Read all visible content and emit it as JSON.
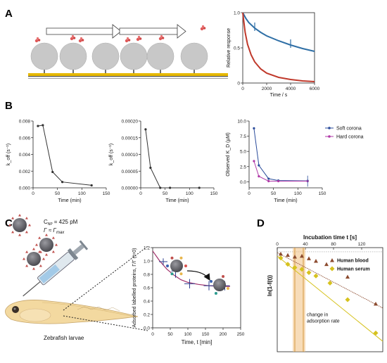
{
  "panels": {
    "A": {
      "label": "A"
    },
    "B": {
      "label": "B"
    },
    "C": {
      "label": "C",
      "conc_text": "C",
      "conc_sub": "NP",
      "conc_value": "= 425 pM",
      "gamma_text": "Γ ≈ Γ",
      "gamma_sub": "max",
      "larvae_label": "Zebrafish larvae"
    },
    "D": {
      "label": "D"
    }
  },
  "chart_data": [
    {
      "id": "A-right",
      "type": "line",
      "xlabel": "Time / s",
      "ylabel": "Relative response",
      "xlim": [
        0,
        6000
      ],
      "ylim": [
        0,
        1.0
      ],
      "xticks": [
        0,
        2000,
        4000,
        6000
      ],
      "yticks": [
        0,
        0.5,
        1.0
      ],
      "ytick_labels": [
        "0",
        "0.5",
        "1.0"
      ],
      "series": [
        {
          "color": "#2f6fa6",
          "x": [
            0,
            250,
            500,
            1000,
            1500,
            2000,
            3000,
            4000,
            5000,
            6000
          ],
          "y": [
            1.0,
            0.92,
            0.86,
            0.78,
            0.72,
            0.67,
            0.6,
            0.54,
            0.49,
            0.45
          ]
        },
        {
          "color": "#c0392b",
          "x": [
            0,
            200,
            400,
            700,
            1000,
            1500,
            2000,
            3000,
            4000,
            5000,
            6000
          ],
          "y": [
            1.0,
            0.72,
            0.55,
            0.4,
            0.3,
            0.2,
            0.14,
            0.08,
            0.05,
            0.03,
            0.02
          ]
        }
      ],
      "error_bars": [
        {
          "x": 1000,
          "y": 0.8,
          "err": 0.06
        },
        {
          "x": 4000,
          "y": 0.56,
          "err": 0.06
        }
      ]
    },
    {
      "id": "B-left",
      "type": "line",
      "xlabel": "Time (min)",
      "ylabel": "k_off (s⁻¹)",
      "xlim": [
        0,
        150
      ],
      "ylim": [
        0,
        0.008
      ],
      "xticks": [
        0,
        50,
        100,
        150
      ],
      "yticks": [
        0,
        0.002,
        0.004,
        0.006,
        0.008
      ],
      "ytick_labels": [
        "0.000",
        "0.002",
        "0.004",
        "0.006",
        "0.008"
      ],
      "series": [
        {
          "color": "#333333",
          "x": [
            10,
            20,
            40,
            60,
            120
          ],
          "y": [
            0.0074,
            0.0075,
            0.0019,
            0.0007,
            0.0003
          ]
        }
      ]
    },
    {
      "id": "B-middle",
      "type": "line",
      "xlabel": "Time (min)",
      "ylabel": "k_off (s⁻¹)",
      "xlim": [
        0,
        150
      ],
      "ylim": [
        0,
        0.0002
      ],
      "xticks": [
        0,
        50,
        100,
        150
      ],
      "yticks": [
        0,
        5e-05,
        0.0001,
        0.00015,
        0.0002
      ],
      "ytick_labels": [
        "0.00000",
        "0.00005",
        "0.00010",
        "0.00015",
        "0.00020"
      ],
      "series": [
        {
          "color": "#333333",
          "x": [
            10,
            20,
            40,
            60,
            120
          ],
          "y": [
            0.000175,
            6e-05,
            0.0,
            0.0,
            0.0
          ]
        }
      ]
    },
    {
      "id": "B-right",
      "type": "line",
      "xlabel": "Time (min)",
      "ylabel": "Observed K_D (µM)",
      "xlim": [
        0,
        150
      ],
      "ylim": [
        -1,
        10
      ],
      "xticks": [
        0,
        50,
        100,
        150
      ],
      "yticks": [
        0,
        2.5,
        5.0,
        7.5,
        10.0
      ],
      "ytick_labels": [
        "0.0",
        "2.5",
        "5.0",
        "7.5",
        "10.0"
      ],
      "legend": "top-right",
      "series": [
        {
          "name": "Soft corona",
          "color": "#2b4c9b",
          "x": [
            10,
            20,
            40,
            60,
            120
          ],
          "y": [
            8.8,
            2.7,
            0.5,
            0.2,
            0.15
          ]
        },
        {
          "name": "Hard corona",
          "color": "#b03aa8",
          "x": [
            10,
            20,
            40,
            60,
            120
          ],
          "y": [
            3.4,
            0.9,
            0.1,
            0.1,
            0.1
          ]
        }
      ]
    },
    {
      "id": "C-right",
      "type": "scatter",
      "xlabel": "Time, t [min]",
      "ylabel": "Adsorbed labelled proteins, Γ/Γ (t=0)",
      "xlim": [
        0,
        250
      ],
      "ylim": [
        0,
        1.2
      ],
      "xticks": [
        0,
        50,
        100,
        150,
        200,
        250
      ],
      "yticks": [
        0,
        0.2,
        0.4,
        0.6,
        0.8,
        1.0,
        1.2
      ],
      "ytick_labels": [
        "0.0",
        "0.2",
        "0.4",
        "0.6",
        "0.8",
        "1.0",
        "1.2"
      ],
      "points": [
        {
          "x": 30,
          "y": 0.99,
          "ex": 12,
          "ey": 0.05
        },
        {
          "x": 65,
          "y": 0.85,
          "ex": 12,
          "ey": 0.1
        },
        {
          "x": 105,
          "y": 0.66,
          "ex": 15,
          "ey": 0.07
        },
        {
          "x": 160,
          "y": 0.63,
          "ex": 15,
          "ey": 0.07
        },
        {
          "x": 205,
          "y": 0.63,
          "ex": 14,
          "ey": 0.07
        }
      ],
      "fit": {
        "color": "#a0306a",
        "x": [
          0,
          20,
          40,
          60,
          80,
          100,
          130,
          160,
          190,
          220
        ],
        "y": [
          1.15,
          1.0,
          0.88,
          0.79,
          0.72,
          0.68,
          0.65,
          0.63,
          0.62,
          0.62
        ]
      }
    },
    {
      "id": "D",
      "type": "scatter",
      "xlabel": "Incubation time t [s]",
      "ylabel": "ln(1-f(t))",
      "xlim": [
        0,
        150
      ],
      "xticks": [
        0,
        40,
        80,
        120
      ],
      "ylim": [
        -2.4,
        0.1
      ],
      "legend": "top-right",
      "annotation": [
        "change in",
        "adsorption rate"
      ],
      "series": [
        {
          "name": "Human blood",
          "color": "#8c4b2f",
          "marker": "triangle",
          "x": [
            5,
            15,
            25,
            35,
            45,
            55,
            70,
            100,
            140
          ],
          "y": [
            -0.05,
            -0.08,
            -0.12,
            -0.1,
            -0.16,
            -0.22,
            -0.3,
            -0.6,
            -1.25
          ]
        },
        {
          "name": "Human serum",
          "color": "#d6c21e",
          "marker": "diamond",
          "x": [
            5,
            15,
            25,
            35,
            45,
            55,
            75,
            100,
            140
          ],
          "y": [
            -0.15,
            -0.3,
            -0.38,
            -0.42,
            -0.5,
            -0.58,
            -0.75,
            -1.15,
            -1.95
          ]
        }
      ]
    }
  ]
}
